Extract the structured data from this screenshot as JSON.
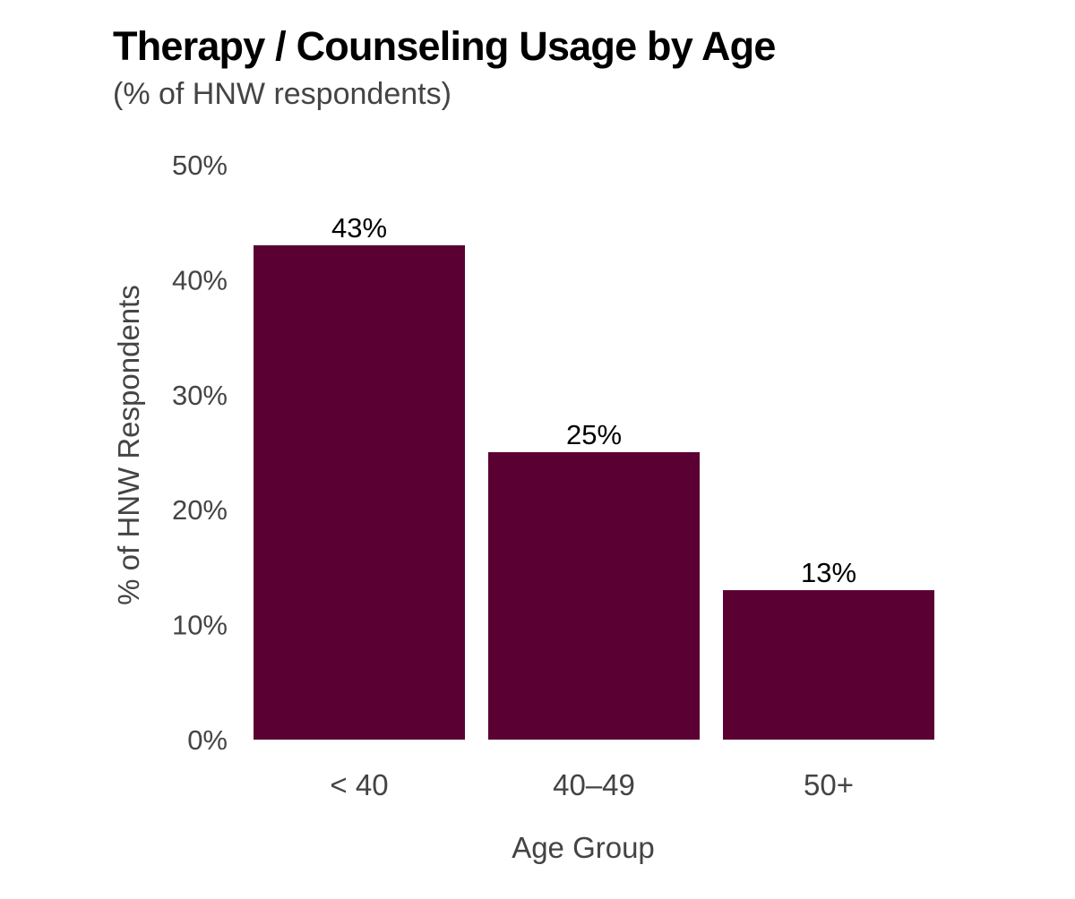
{
  "chart_data": {
    "type": "bar",
    "title": "Therapy / Counseling Usage by Age",
    "subtitle": "(% of HNW respondents)",
    "xlabel": "Age Group",
    "ylabel": "% of HNW Respondents",
    "categories": [
      "< 40",
      "40–49",
      "50+"
    ],
    "values": [
      43,
      25,
      13
    ],
    "value_labels": [
      "43%",
      "25%",
      "13%"
    ],
    "ylim": [
      0,
      50
    ],
    "yticks": [
      0,
      10,
      20,
      30,
      40,
      50
    ],
    "ytick_labels": [
      "0%",
      "10%",
      "20%",
      "30%",
      "40%",
      "50%"
    ],
    "bar_color": "#5a0032",
    "grid": false,
    "legend": "none"
  }
}
